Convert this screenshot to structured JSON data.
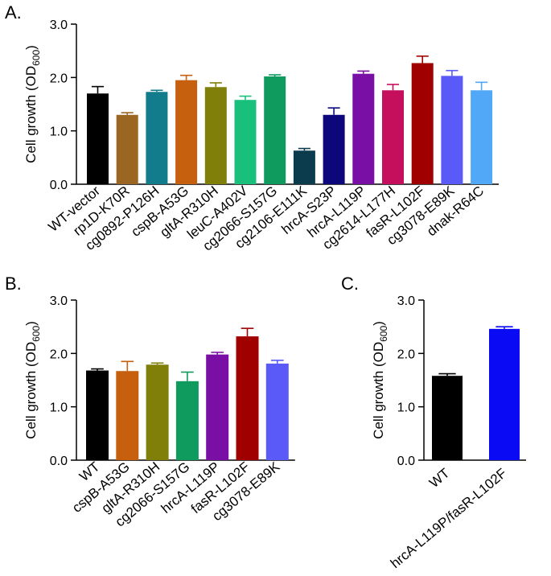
{
  "chart_data": [
    {
      "panel": "A.",
      "type": "bar",
      "ylabel": "Cell growth (OD",
      "ylabel_sub": "600",
      "ylabel_close": ")",
      "ylim": [
        0,
        3
      ],
      "yticks": [
        "0.0",
        "1.0",
        "2.0",
        "3.0"
      ],
      "categories": [
        "WT-vector",
        "rp1D-K70R",
        "cg0892-P126H",
        "cspB-A53G",
        "gltA-R310H",
        "leuC-A402V",
        "cg2066-S157G",
        "cg2106-E111K",
        "hrcA-S23P",
        "hrcA-L119P",
        "cg2614-L177H",
        "fasR-L102F",
        "cg3078-E89K",
        "dnak-R64C"
      ],
      "values": [
        1.7,
        1.3,
        1.73,
        1.95,
        1.82,
        1.58,
        2.02,
        0.63,
        1.3,
        2.07,
        1.76,
        2.27,
        2.03,
        1.76
      ],
      "errors": [
        0.13,
        0.04,
        0.03,
        0.09,
        0.08,
        0.07,
        0.03,
        0.04,
        0.13,
        0.05,
        0.11,
        0.13,
        0.1,
        0.15
      ],
      "colors": [
        "#000000",
        "#9b6522",
        "#127c8c",
        "#c6600e",
        "#7f7f0a",
        "#18c07c",
        "#0f9a5e",
        "#0b3c4e",
        "#0c087c",
        "#7a0fa6",
        "#c60f5c",
        "#a10000",
        "#5a5af8",
        "#51a8f6"
      ]
    },
    {
      "panel": "B.",
      "type": "bar",
      "ylabel": "Cell growth (OD",
      "ylabel_sub": "600",
      "ylabel_close": ")",
      "ylim": [
        0,
        3
      ],
      "yticks": [
        "0.0",
        "1.0",
        "2.0",
        "3.0"
      ],
      "categories": [
        "WT",
        "cspB-A53G",
        "gltA-R310H",
        "cg2066-S157G",
        "hrcA-L119P",
        "fasR-L102F",
        "cg3078-E89K"
      ],
      "values": [
        1.68,
        1.67,
        1.79,
        1.48,
        1.98,
        2.32,
        1.81
      ],
      "errors": [
        0.03,
        0.18,
        0.03,
        0.17,
        0.04,
        0.15,
        0.06
      ],
      "colors": [
        "#000000",
        "#c6600e",
        "#7f7f0a",
        "#0f9a5e",
        "#7a0fa6",
        "#a10000",
        "#5a5af8"
      ]
    },
    {
      "panel": "C.",
      "type": "bar",
      "ylabel": "Cell growth (OD",
      "ylabel_sub": "600",
      "ylabel_close": ")",
      "ylim": [
        0,
        3
      ],
      "yticks": [
        "0.0",
        "1.0",
        "2.0",
        "3.0"
      ],
      "categories": [
        "WT",
        "hrcA-L119P/fasR-L102F"
      ],
      "values": [
        1.58,
        2.46
      ],
      "errors": [
        0.04,
        0.04
      ],
      "colors": [
        "#000000",
        "#0a0af5"
      ]
    }
  ]
}
